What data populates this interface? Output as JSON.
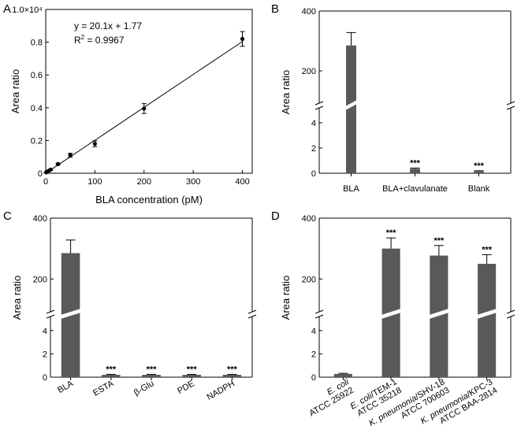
{
  "chart_data": [
    {
      "panel": "A",
      "type": "scatter",
      "xlabel": "BLA concentration (pM)",
      "ylabel": "Area ratio",
      "xlim": [
        0,
        420
      ],
      "ylim": [
        0,
        1.0
      ],
      "xticks": [
        0,
        100,
        200,
        300,
        400
      ],
      "xtick_labels": [
        "0",
        "100",
        "200",
        "300",
        "400"
      ],
      "yticks": [
        0,
        0.2,
        0.4,
        0.6,
        0.8,
        1.0
      ],
      "ytick_labels": [
        "0",
        "0.2",
        "0.4",
        "0.6",
        "0.8",
        "1.0×10⁴"
      ],
      "points": [
        {
          "x": 1,
          "y": 0.005,
          "err": 0.002
        },
        {
          "x": 2,
          "y": 0.008,
          "err": 0.002
        },
        {
          "x": 5,
          "y": 0.013,
          "err": 0.003
        },
        {
          "x": 10,
          "y": 0.022,
          "err": 0.004
        },
        {
          "x": 25,
          "y": 0.056,
          "err": 0.006
        },
        {
          "x": 50,
          "y": 0.11,
          "err": 0.012
        },
        {
          "x": 100,
          "y": 0.18,
          "err": 0.018
        },
        {
          "x": 200,
          "y": 0.395,
          "err": 0.03
        },
        {
          "x": 400,
          "y": 0.82,
          "err": 0.045
        }
      ],
      "fit": {
        "slope": 20.1,
        "intercept": 1.77,
        "equation": "y = 20.1x + 1.77",
        "r2_prefix": "R",
        "r2_value": " = 0.9967"
      }
    },
    {
      "panel": "B",
      "type": "bar",
      "ylabel": "Area ratio",
      "categories": [
        "BLA",
        "BLA+clavulanate",
        "Blank"
      ],
      "values": [
        285,
        0.35,
        0.15
      ],
      "errors": [
        43,
        0.06,
        0.05
      ],
      "significance": [
        "",
        "***",
        "***"
      ],
      "lower_ticks": [
        "0",
        "2",
        "4"
      ],
      "upper_ticks": [
        "200",
        "400"
      ]
    },
    {
      "panel": "C",
      "type": "bar",
      "ylabel": "Area ratio",
      "categories": [
        "BLA",
        "ESTA",
        "β-Glu",
        "PDE",
        "NADPH"
      ],
      "values": [
        285,
        0.2,
        0.2,
        0.2,
        0.2
      ],
      "errors": [
        43,
        0.04,
        0.04,
        0.04,
        0.04
      ],
      "significance": [
        "",
        "***",
        "***",
        "***",
        "***"
      ],
      "lower_ticks": [
        "0",
        "2",
        "4"
      ],
      "upper_ticks": [
        "200",
        "400"
      ]
    },
    {
      "panel": "D",
      "type": "bar",
      "ylabel": "Area ratio",
      "categories": [
        {
          "species": "E. coli",
          "strain": "",
          "line2": "ATCC 25922"
        },
        {
          "species": "E. coli",
          "strain": "/TEM-1",
          "line2": "ATCC 35218"
        },
        {
          "species": "K. pneumonia",
          "strain": "/SHV-18",
          "line2": "ATCC 700603"
        },
        {
          "species": "K. pneumonia",
          "strain": "/KPC-3",
          "line2": "ATCC BAA-2814"
        }
      ],
      "values": [
        0.28,
        300,
        277,
        250
      ],
      "errors": [
        0.05,
        35,
        33,
        30
      ],
      "significance": [
        "",
        "***",
        "***",
        "***"
      ],
      "lower_ticks": [
        "0",
        "2",
        "4"
      ],
      "upper_ticks": [
        "200",
        "400"
      ]
    }
  ]
}
